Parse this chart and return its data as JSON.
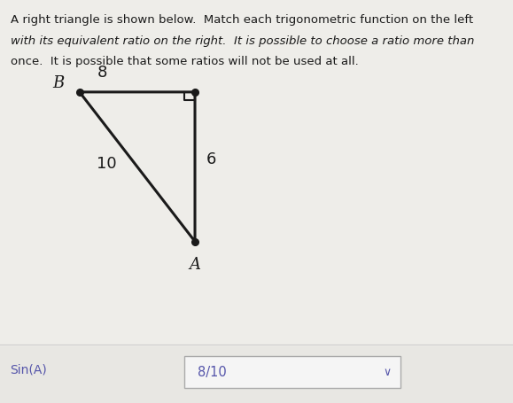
{
  "background_color": "#e8e8e8",
  "panel_color": "#f0efec",
  "title_line1": "A right triangle is shown below.  Match each trigonometric function on the left",
  "title_line2": "with its equivalent ratio on the right.  It is possible to choose a ratio more than",
  "title_line3": "once.  It is possible that some ratios will not be used at all.",
  "title_fontsize": 9.5,
  "title_color": "#1a1a1a",
  "vertex_B": [
    0.155,
    0.77
  ],
  "vertex_C": [
    0.38,
    0.77
  ],
  "vertex_A": [
    0.38,
    0.4
  ],
  "label_B": "B",
  "label_A": "A",
  "side_BC": "8",
  "side_CA": "6",
  "side_BA": "10",
  "triangle_color": "#1a1a1a",
  "label_color": "#1a1a1a",
  "sin_label": "Sin(A)",
  "sin_color": "#5555aa",
  "answer_text": "8/10",
  "answer_color": "#5555aa",
  "answer_box_color": "#f5f5f5",
  "answer_box_edge": "#aaaaaa",
  "chevron_color": "#5555aa",
  "separator_color": "#cccccc",
  "fig_width": 5.79,
  "fig_height": 4.56,
  "dpi": 100
}
